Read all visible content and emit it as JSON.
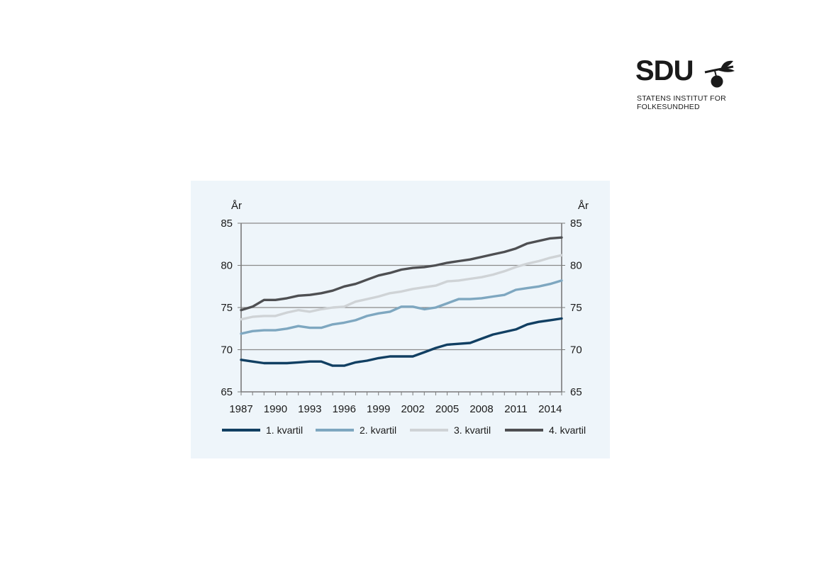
{
  "logo": {
    "mark": "SDU",
    "line1": "STATENS INSTITUT FOR",
    "line2": "FOLKESUNDHED"
  },
  "colors": {
    "q1": "#113f62",
    "q2": "#7ea7c0",
    "q3": "#cfd3d6",
    "q4": "#4e4f52",
    "panel": "#eef5fa"
  },
  "chart_data": {
    "type": "line",
    "title": "",
    "xlabel": "",
    "ylabel": "År",
    "ylabel_right": "År",
    "x": [
      1987,
      1988,
      1989,
      1990,
      1991,
      1992,
      1993,
      1994,
      1995,
      1996,
      1997,
      1998,
      1999,
      2000,
      2001,
      2002,
      2003,
      2004,
      2005,
      2006,
      2007,
      2008,
      2009,
      2010,
      2011,
      2012,
      2013,
      2014,
      2015
    ],
    "x_ticks": [
      "1987",
      "1990",
      "1993",
      "1996",
      "1999",
      "2002",
      "2005",
      "2008",
      "2011",
      "2014"
    ],
    "ylim": [
      65,
      85
    ],
    "y_ticks": [
      "65",
      "70",
      "75",
      "80",
      "85"
    ],
    "grid": true,
    "legend_position": "bottom",
    "series": [
      {
        "name": "1. kvartil",
        "color": "#113f62",
        "values": [
          68.8,
          68.6,
          68.4,
          68.4,
          68.4,
          68.5,
          68.6,
          68.6,
          68.1,
          68.1,
          68.5,
          68.7,
          69.0,
          69.2,
          69.2,
          69.2,
          69.7,
          70.2,
          70.6,
          70.7,
          70.8,
          71.3,
          71.8,
          72.1,
          72.4,
          73.0,
          73.3,
          73.5,
          73.7
        ]
      },
      {
        "name": "2. kvartil",
        "color": "#7ea7c0",
        "values": [
          71.9,
          72.2,
          72.3,
          72.3,
          72.5,
          72.8,
          72.6,
          72.6,
          73.0,
          73.2,
          73.5,
          74.0,
          74.3,
          74.5,
          75.1,
          75.1,
          74.8,
          75.0,
          75.5,
          76.0,
          76.0,
          76.1,
          76.3,
          76.5,
          77.1,
          77.3,
          77.5,
          77.8,
          78.2
        ]
      },
      {
        "name": "3. kvartil",
        "color": "#cfd3d6",
        "values": [
          73.6,
          73.9,
          74.0,
          74.0,
          74.4,
          74.7,
          74.5,
          74.8,
          75.0,
          75.1,
          75.7,
          76.0,
          76.3,
          76.7,
          76.9,
          77.2,
          77.4,
          77.6,
          78.1,
          78.2,
          78.4,
          78.6,
          78.9,
          79.3,
          79.8,
          80.2,
          80.5,
          80.9,
          81.2
        ]
      },
      {
        "name": "4. kvartil",
        "color": "#4e4f52",
        "values": [
          74.7,
          75.1,
          75.9,
          75.9,
          76.1,
          76.4,
          76.5,
          76.7,
          77.0,
          77.5,
          77.8,
          78.3,
          78.8,
          79.1,
          79.5,
          79.7,
          79.8,
          80.0,
          80.3,
          80.5,
          80.7,
          81.0,
          81.3,
          81.6,
          82.0,
          82.6,
          82.9,
          83.2,
          83.3
        ]
      }
    ]
  }
}
